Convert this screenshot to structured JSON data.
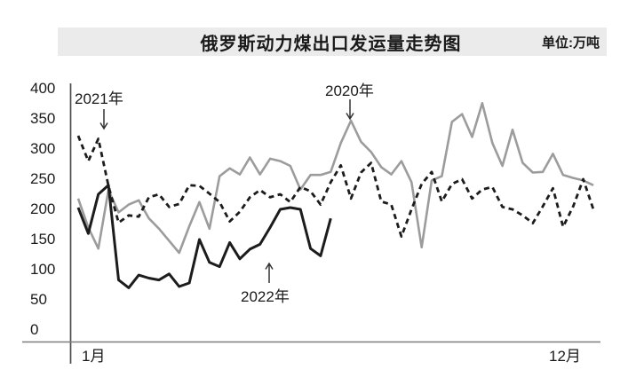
{
  "header": {
    "title": "俄罗斯动力煤出口发运量走势图",
    "unit_label": "单位:万吨"
  },
  "chart_data": {
    "type": "line",
    "title": "俄罗斯动力煤出口发运量走势图",
    "unit": "万吨",
    "x_axis": {
      "start_label": "1月",
      "end_label": "12月",
      "note": "weekly points from January to December; values estimated from plot"
    },
    "ylim": [
      0,
      400
    ],
    "yticks": [
      0,
      50,
      100,
      150,
      200,
      250,
      300,
      350,
      400
    ],
    "grid": false,
    "legend_position": "inline-annotations",
    "series": [
      {
        "name": "2020年",
        "color": "#9c9c9c",
        "style": "solid",
        "stroke_width": 2.6,
        "values": [
          218,
          170,
          135,
          232,
          195,
          208,
          215,
          185,
          168,
          148,
          128,
          172,
          212,
          168,
          255,
          268,
          258,
          286,
          258,
          284,
          280,
          272,
          233,
          257,
          257,
          262,
          310,
          347,
          312,
          295,
          270,
          258,
          280,
          245,
          137,
          248,
          255,
          345,
          358,
          320,
          376,
          310,
          272,
          332,
          277,
          261,
          262,
          292,
          257,
          252,
          248,
          240
        ]
      },
      {
        "name": "2021年",
        "color": "#1c1c1c",
        "style": "dashed",
        "stroke_width": 2.8,
        "values": [
          322,
          280,
          317,
          239,
          178,
          190,
          188,
          220,
          225,
          204,
          209,
          240,
          239,
          226,
          212,
          180,
          196,
          220,
          232,
          220,
          225,
          212,
          237,
          230,
          208,
          245,
          273,
          218,
          261,
          277,
          213,
          208,
          155,
          200,
          242,
          262,
          213,
          242,
          250,
          218,
          233,
          237,
          204,
          200,
          190,
          177,
          205,
          235,
          171,
          205,
          250,
          200
        ]
      },
      {
        "name": "2022年",
        "color": "#1c1c1c",
        "style": "solid",
        "stroke_width": 3,
        "values": [
          203,
          160,
          225,
          240,
          83,
          70,
          91,
          86,
          83,
          93,
          72,
          78,
          150,
          112,
          105,
          145,
          118,
          134,
          142,
          170,
          200,
          203,
          200,
          135,
          123,
          185
        ]
      }
    ],
    "annotations": [
      {
        "label": "2021年",
        "arrow": "down"
      },
      {
        "label": "2020年",
        "arrow": "down"
      },
      {
        "label": "2022年",
        "arrow": "up"
      }
    ]
  }
}
